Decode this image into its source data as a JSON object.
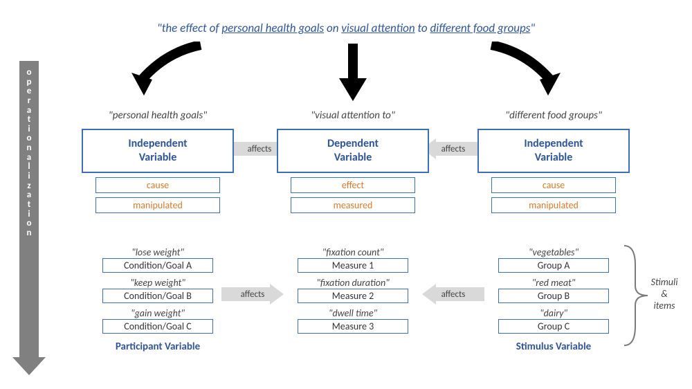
{
  "title": {
    "prefix": "\"the ",
    "word1": "effect",
    "mid1": " of ",
    "u1": "personal health goals",
    "mid2": " on ",
    "u2": "visual attention",
    "mid3": " to ",
    "u3": "different food groups",
    "suffix": "\""
  },
  "sidebar": "operationalization",
  "columns": [
    {
      "header": "\"personal health goals\"",
      "big_line1": "Independent",
      "big_line2": "Variable",
      "small1": "cause",
      "small2": "manipulated",
      "items": [
        {
          "label": "\"lose weight\"",
          "box": "Condition/Goal A"
        },
        {
          "label": "\"keep weight\"",
          "box": "Condition/Goal B"
        },
        {
          "label": "\"gain weight\"",
          "box": "Condition/Goal C"
        }
      ],
      "varlabel": "Participant Variable"
    },
    {
      "header": "\"visual attention to\"",
      "big_line1": "Dependent",
      "big_line2": "Variable",
      "small1": "effect",
      "small2": "measured",
      "items": [
        {
          "label": "\"fixation count\"",
          "box": "Measure 1"
        },
        {
          "label": "\"fixation duration\"",
          "box": "Measure 2"
        },
        {
          "label": "\"dwell time\"",
          "box": "Measure 3"
        }
      ],
      "varlabel": ""
    },
    {
      "header": "\"different food groups\"",
      "big_line1": "Independent",
      "big_line2": "Variable",
      "small1": "cause",
      "small2": "manipulated",
      "items": [
        {
          "label": "\"vegetables\"",
          "box": "Group A"
        },
        {
          "label": "\"red meat\"",
          "box": "Group B"
        },
        {
          "label": "\"dairy\"",
          "box": "Group C"
        }
      ],
      "varlabel": "Stimulus Variable"
    }
  ],
  "affects_label": "affects",
  "bracket_label_l1": "Stimuli",
  "bracket_label_l2": "&",
  "bracket_label_l3": "items",
  "colors": {
    "blue": "#2e5597",
    "orange": "#d97a2e",
    "gray_arrow": "#d9d9d9",
    "sidebar": "#808080",
    "black": "#000000"
  }
}
